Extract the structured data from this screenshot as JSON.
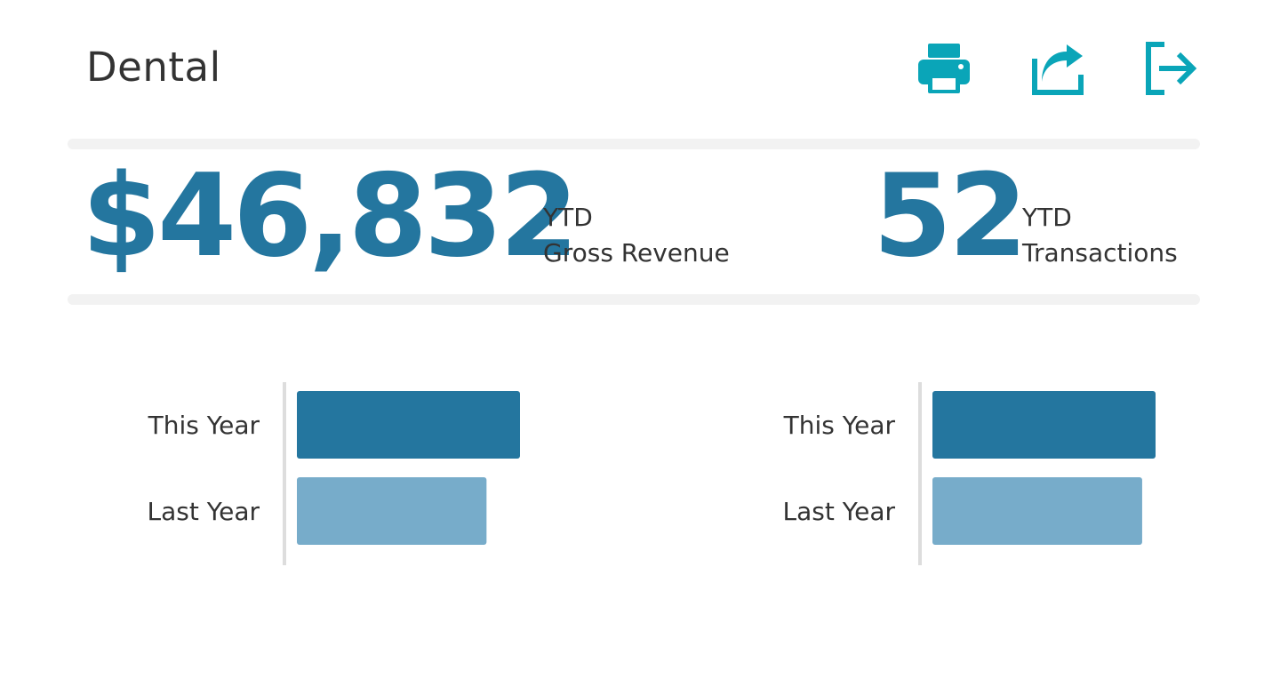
{
  "header": {
    "title": "Dental",
    "actions": [
      {
        "name": "print",
        "icon": "printer-icon"
      },
      {
        "name": "share",
        "icon": "share-icon"
      },
      {
        "name": "logout",
        "icon": "logout-icon"
      }
    ],
    "icon_color": "#0aa5b8"
  },
  "kpis": {
    "revenue": {
      "value": "$46,832",
      "label_top": "YTD",
      "label_bottom": "Gross Revenue"
    },
    "transactions": {
      "value": "52",
      "label_top": "YTD",
      "label_bottom": "Transactions"
    }
  },
  "colors": {
    "accent": "#24769f",
    "accent_light": "#77acca",
    "divider": "#f2f2f2",
    "axis": "#dddddd",
    "text": "#333333"
  },
  "chart_data": [
    {
      "type": "bar",
      "orientation": "horizontal",
      "categories": [
        "This Year",
        "Last Year"
      ],
      "values": [
        100,
        85
      ],
      "xlim": [
        0,
        100
      ],
      "title": "",
      "xlabel": "",
      "ylabel": "",
      "grid": false,
      "bar_colors": [
        "#24769f",
        "#77acca"
      ]
    },
    {
      "type": "bar",
      "orientation": "horizontal",
      "categories": [
        "This Year",
        "Last Year"
      ],
      "values": [
        100,
        94
      ],
      "xlim": [
        0,
        100
      ],
      "title": "",
      "xlabel": "",
      "ylabel": "",
      "grid": false,
      "bar_colors": [
        "#24769f",
        "#77acca"
      ]
    }
  ]
}
